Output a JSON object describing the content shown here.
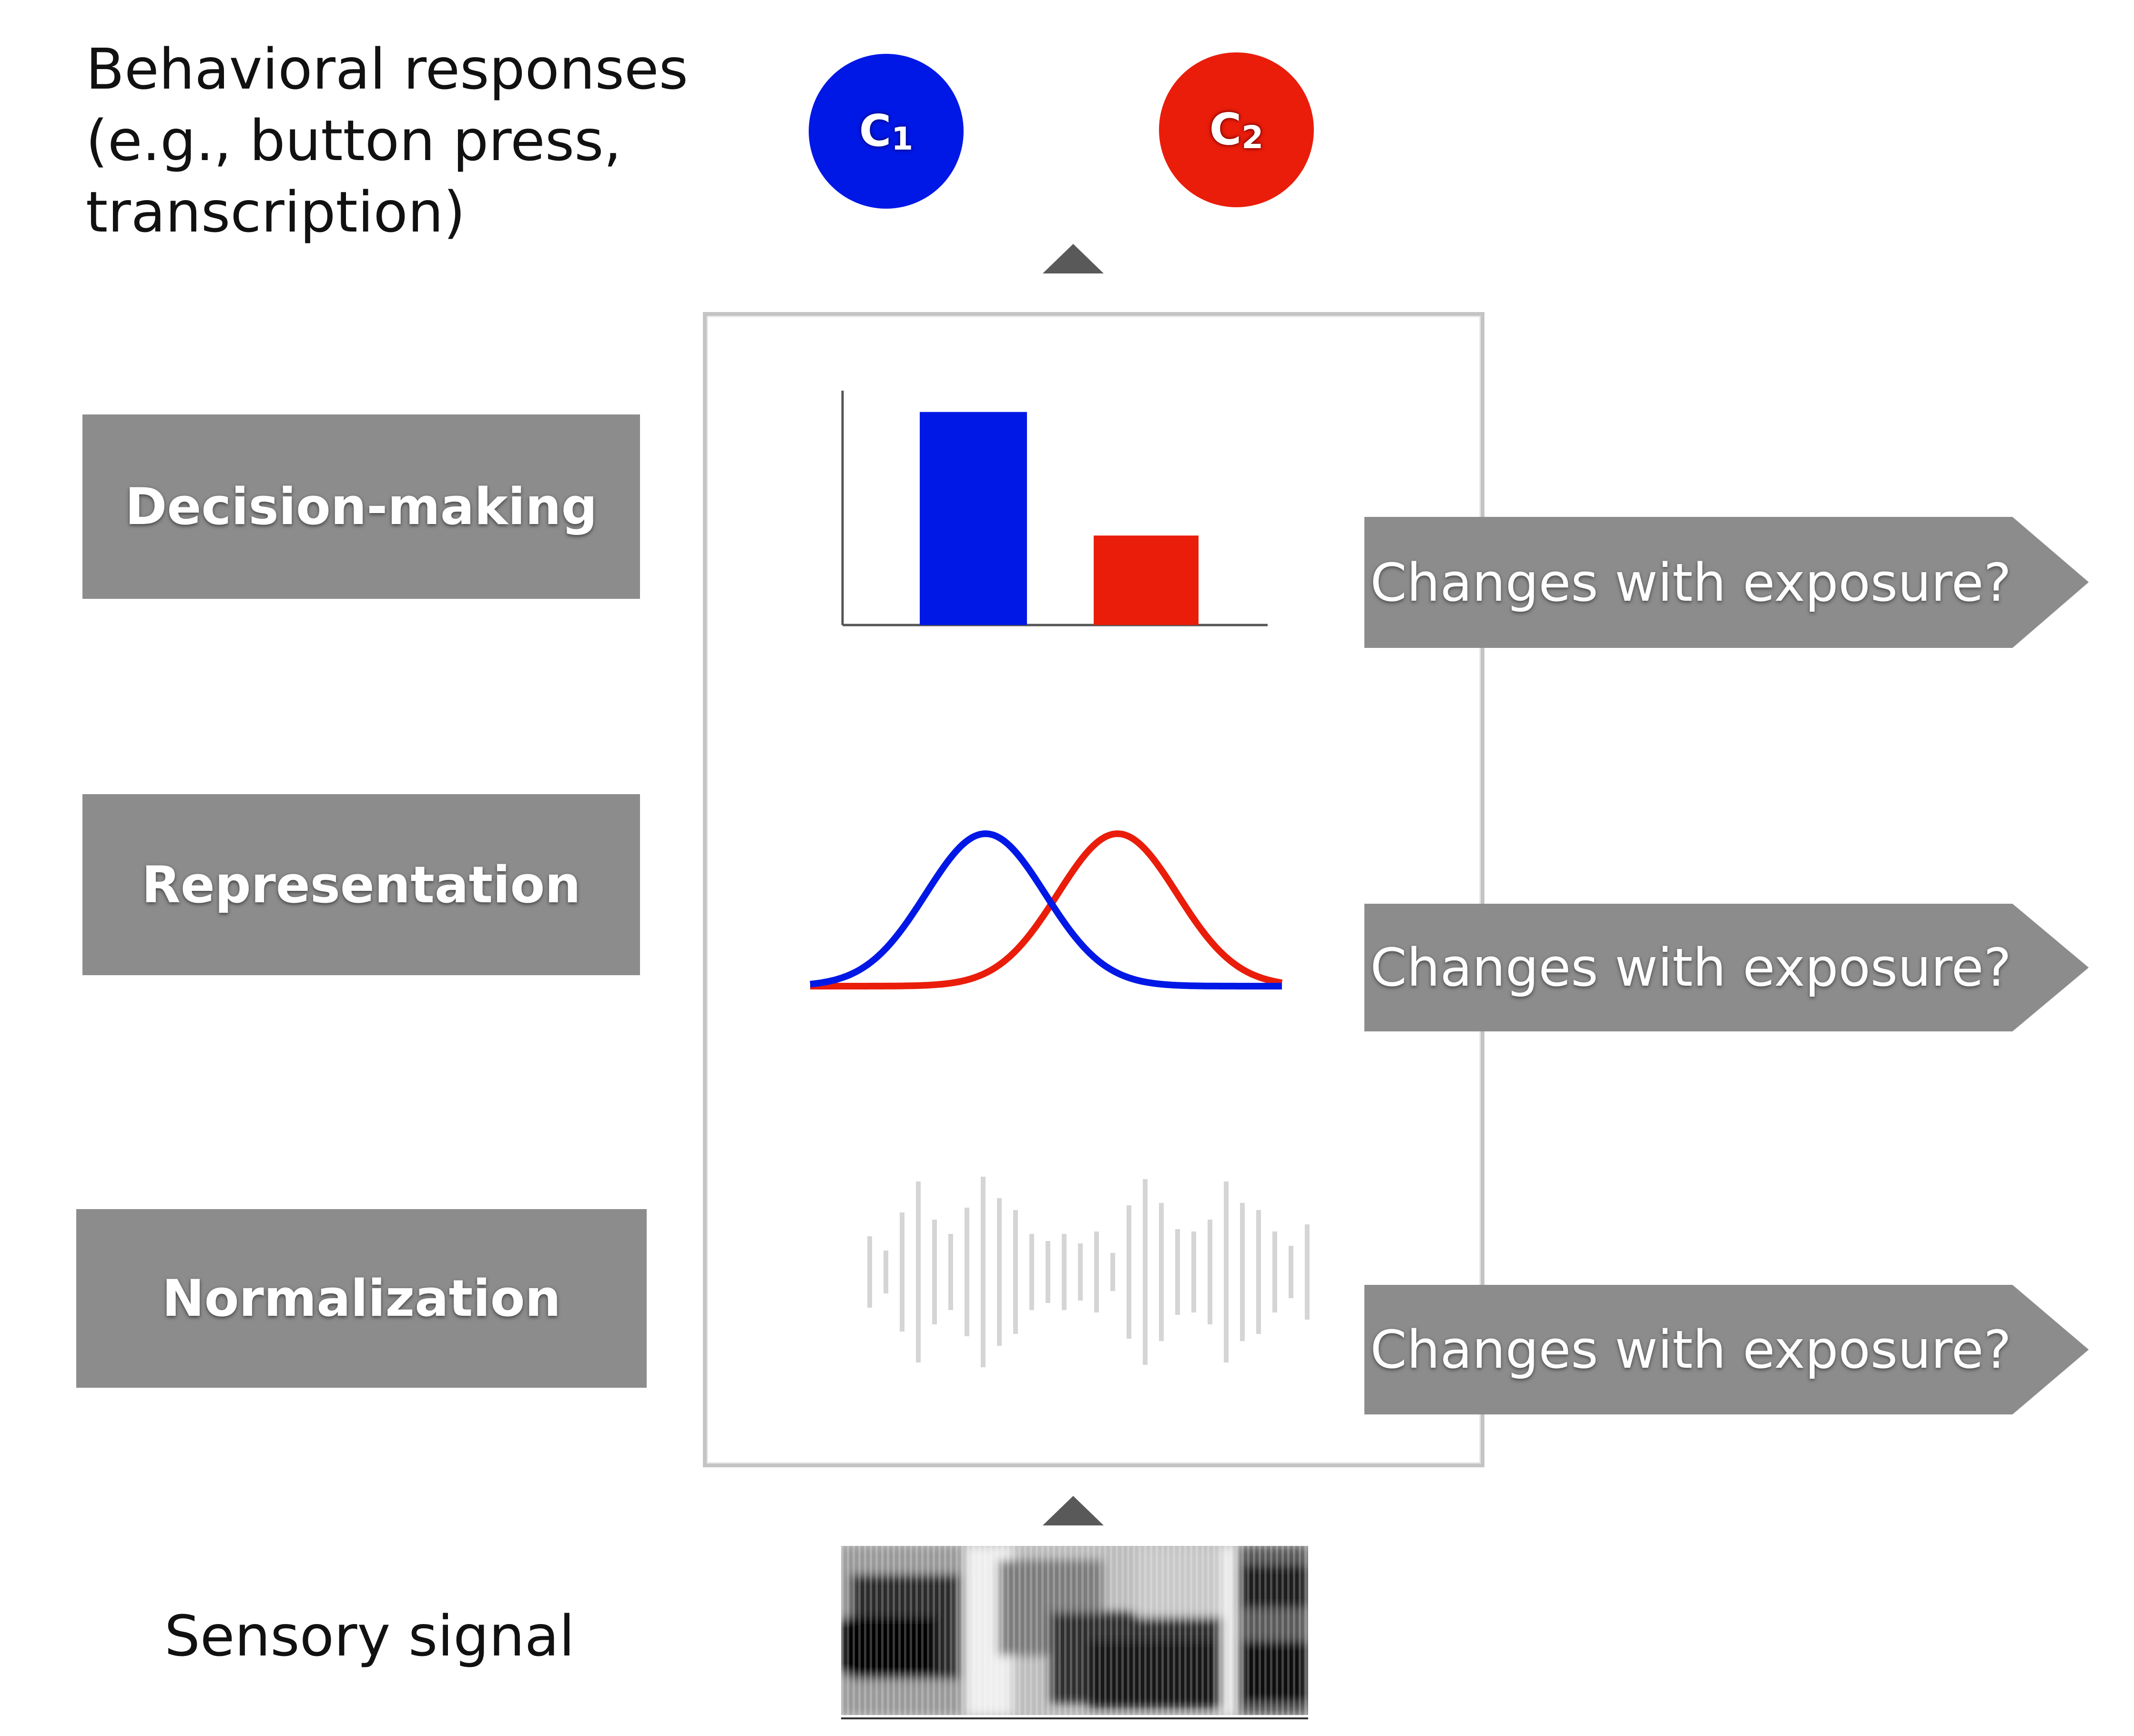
{
  "behavioral_label_lines": [
    "Behavioral responses",
    "(e.g., button press,",
    "transcription)"
  ],
  "categories": [
    {
      "letter": "C",
      "index": "1",
      "color": "#0018e6"
    },
    {
      "letter": "C",
      "index": "2",
      "color": "#ea1d0b"
    }
  ],
  "stages": {
    "decision": "Decision-making",
    "representation": "Representation",
    "normalization": "Normalization"
  },
  "exposure_label": "Changes with exposure?",
  "sensory_label": "Sensory signal",
  "colors": {
    "stage_box": "#8c8c8c",
    "badge": "#8c8c8c",
    "arrow": "#595959",
    "c1": "#0018e6",
    "c2": "#ea1d0b"
  },
  "chart_data": {
    "type": "bar",
    "categories": [
      "C1",
      "C2"
    ],
    "values": [
      1.0,
      0.42
    ],
    "colors": [
      "#0018e6",
      "#ea1d0b"
    ],
    "title": "",
    "xlabel": "",
    "ylabel": "",
    "ylim": [
      0,
      1.1
    ]
  }
}
